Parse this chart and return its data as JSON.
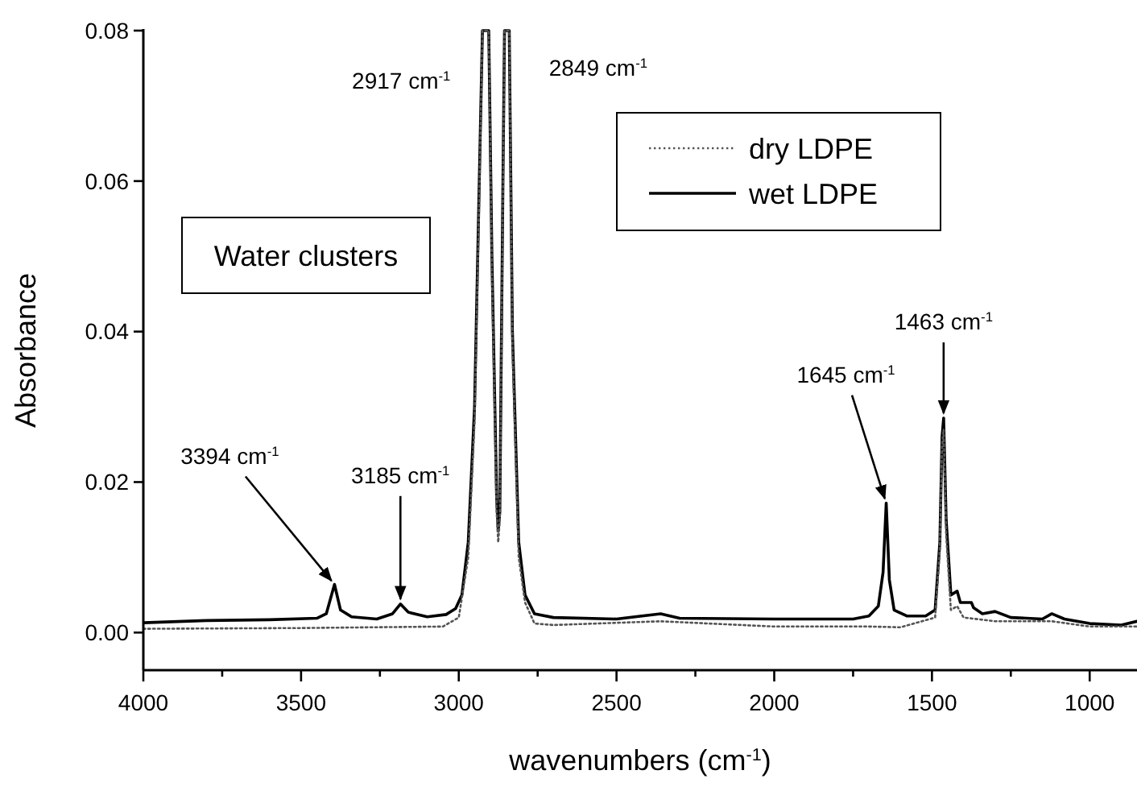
{
  "chart_data": {
    "type": "line",
    "xlabel": "wavenumbers (cm$^{-1}$)",
    "ylabel": "Absorbance",
    "xlim": [
      4000,
      850
    ],
    "ylim": [
      -0.005,
      0.08
    ],
    "xticks": [
      4000,
      {
        "value": 3750,
        "label": null
      },
      3500,
      {
        "value": 3250,
        "label": null
      },
      3000,
      {
        "value": 2750,
        "label": null
      },
      2500,
      {
        "value": 2250,
        "label": null
      },
      2000,
      {
        "value": 1750,
        "label": null
      },
      1500,
      {
        "value": 1250,
        "label": null
      },
      1000
    ],
    "yticks": [
      {
        "value": 0,
        "label": "0.00"
      },
      {
        "value": 0.02,
        "label": "0.02"
      },
      {
        "value": 0.04,
        "label": "0.04"
      },
      {
        "value": 0.06,
        "label": "0.06"
      },
      {
        "value": 0.08,
        "label": "0.08"
      }
    ],
    "grid": false,
    "legend": "top right",
    "series": [
      {
        "name": "dry LDPE",
        "color": "#555555",
        "line_style": "dotted",
        "x": [
          4000,
          3500,
          3050,
          3000,
          2970,
          2950,
          2935,
          2925,
          2905,
          2895,
          2880,
          2875,
          2870,
          2860,
          2855,
          2840,
          2830,
          2810,
          2790,
          2760,
          2700,
          2360,
          2000,
          1700,
          1600,
          1490,
          1475,
          1468,
          1463,
          1455,
          1440,
          1420,
          1400,
          1300,
          1120,
          1000,
          850
        ],
        "values": [
          0.0005,
          0.0006,
          0.0008,
          0.002,
          0.01,
          0.028,
          0.058,
          0.08,
          0.08,
          0.048,
          0.016,
          0.012,
          0.015,
          0.058,
          0.08,
          0.08,
          0.038,
          0.01,
          0.004,
          0.0012,
          0.001,
          0.0015,
          0.0008,
          0.0008,
          0.0007,
          0.002,
          0.011,
          0.025,
          0.027,
          0.013,
          0.003,
          0.0035,
          0.002,
          0.0015,
          0.0015,
          0.0008,
          0.0008
        ]
      },
      {
        "name": "wet LDPE",
        "color": "#000000",
        "line_style": "solid",
        "x": [
          4000,
          3800,
          3600,
          3450,
          3420,
          3394,
          3375,
          3340,
          3260,
          3210,
          3185,
          3160,
          3100,
          3040,
          3010,
          2990,
          2970,
          2950,
          2935,
          2925,
          2917,
          2905,
          2895,
          2880,
          2875,
          2870,
          2860,
          2855,
          2849,
          2840,
          2830,
          2810,
          2790,
          2760,
          2700,
          2500,
          2360,
          2300,
          2000,
          1750,
          1700,
          1670,
          1655,
          1645,
          1635,
          1620,
          1580,
          1520,
          1490,
          1475,
          1468,
          1463,
          1455,
          1440,
          1420,
          1410,
          1375,
          1368,
          1340,
          1300,
          1250,
          1150,
          1120,
          1080,
          1000,
          900,
          850
        ],
        "values": [
          0.0013,
          0.0016,
          0.0017,
          0.0019,
          0.0025,
          0.0064,
          0.003,
          0.0021,
          0.0018,
          0.0025,
          0.0038,
          0.0027,
          0.0021,
          0.0024,
          0.0032,
          0.005,
          0.012,
          0.03,
          0.06,
          0.08,
          0.08,
          0.08,
          0.05,
          0.018,
          0.0135,
          0.016,
          0.06,
          0.08,
          0.08,
          0.08,
          0.04,
          0.012,
          0.005,
          0.0025,
          0.002,
          0.0018,
          0.0025,
          0.0019,
          0.0018,
          0.0018,
          0.0022,
          0.0035,
          0.008,
          0.0172,
          0.007,
          0.003,
          0.0022,
          0.0022,
          0.003,
          0.012,
          0.026,
          0.0285,
          0.015,
          0.005,
          0.0055,
          0.004,
          0.004,
          0.0033,
          0.0025,
          0.0028,
          0.002,
          0.0018,
          0.0025,
          0.0018,
          0.0012,
          0.001,
          0.0015
        ]
      }
    ],
    "annotations": [
      {
        "text": "2917 cm$^{-1}$",
        "x": 2917,
        "y": 0.08
      },
      {
        "text": "2849 cm$^{-1}$",
        "x": 2849,
        "y": 0.08
      },
      {
        "text": "3394 cm$^{-1}$",
        "x": 3394,
        "y": 0.0064
      },
      {
        "text": "3185 cm$^{-1}$",
        "x": 3185,
        "y": 0.0038
      },
      {
        "text": "1645 cm$^{-1}$",
        "x": 1645,
        "y": 0.0172
      },
      {
        "text": "1463 cm$^{-1}$",
        "x": 1463,
        "y": 0.0285
      },
      "Water clusters"
    ]
  }
}
